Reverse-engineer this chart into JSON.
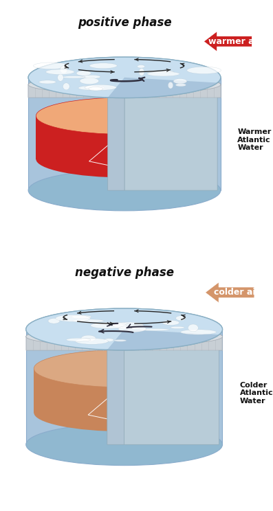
{
  "title_positive": "positive phase",
  "title_negative": "negative phase",
  "label_warmer_air": "warmer air",
  "label_warmer_water": "Warmer\nAtlantic\nWater",
  "label_colder_air": "colder air",
  "label_colder_water": "Colder\nAtlantic\nWater",
  "bg_color": "#ffffff",
  "cylinder_body_color": "#a8c4dc",
  "cylinder_body_edge": "#8aaccc",
  "cylinder_bottom_color": "#90b8d0",
  "ice_top_color": "#c8dff0",
  "ice_top_edge": "#8aafc4",
  "ice_texture_color": "#e8f2f8",
  "rim_color": "#c8cfd5",
  "rim_stripe_color": "#b0b8c0",
  "warm_water_side": "#cc2020",
  "warm_water_top": "#f0a878",
  "cold_water_side": "#c8855a",
  "cold_water_top": "#dba882",
  "warm_air_color": "#cc2020",
  "cold_air_color": "#d4956a",
  "arrow_text_color": "#111111",
  "title_fontsize": 12,
  "label_fontsize": 9
}
